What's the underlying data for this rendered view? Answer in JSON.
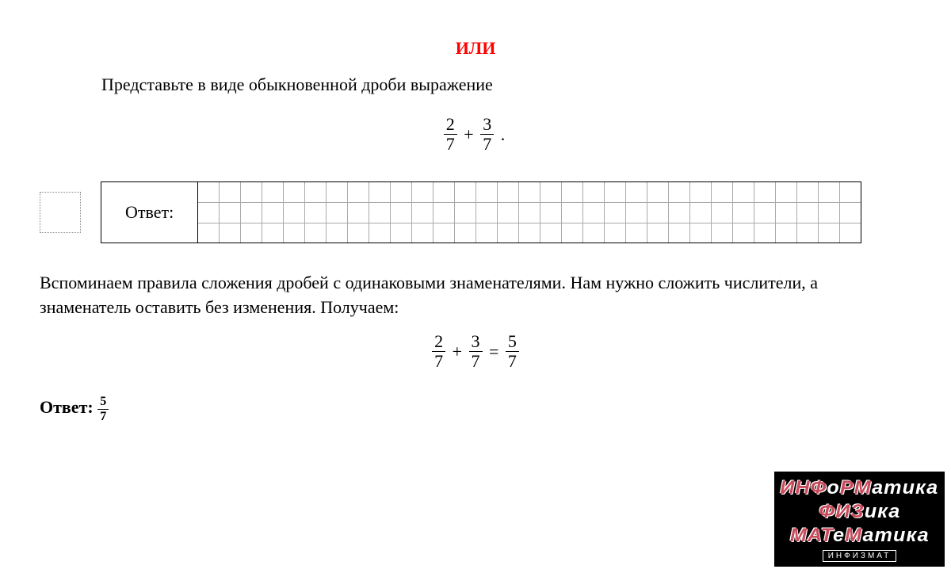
{
  "heading": "ИЛИ",
  "problem_text": "Представьте в виде обыкновенной дроби выражение",
  "fraction1": {
    "num": "2",
    "den": "7"
  },
  "fraction2": {
    "num": "3",
    "den": "7"
  },
  "result_fraction": {
    "num": "5",
    "den": "7"
  },
  "plus": "+",
  "equals": "=",
  "period": ".",
  "answer_label": "Ответ:",
  "grid": {
    "cols": 31,
    "rows": 3
  },
  "explanation": "Вспоминаем правила сложения дробей с одинаковыми знаменателями. Нам нужно сложить числители, а знаменатель оставить без изменения. Получаем:",
  "final_answer_label": "Ответ: ",
  "watermark": {
    "line1_red": "ИНФ",
    "line1_white1": "о",
    "line1_red2": "РМ",
    "line1_white2": "атика",
    "line2_red": "ФИЗ",
    "line2_white": "ика",
    "line3_red": "МАТ",
    "line3_white1": "е",
    "line3_red2": "М",
    "line3_white2": "атика",
    "footer": "ИНФИЗМАТ"
  },
  "colors": {
    "heading": "#ff0000",
    "text": "#000000",
    "background": "#ffffff",
    "grid_border": "#aaaaaa",
    "watermark_bg": "#000000",
    "watermark_red": "#c94a5a"
  }
}
